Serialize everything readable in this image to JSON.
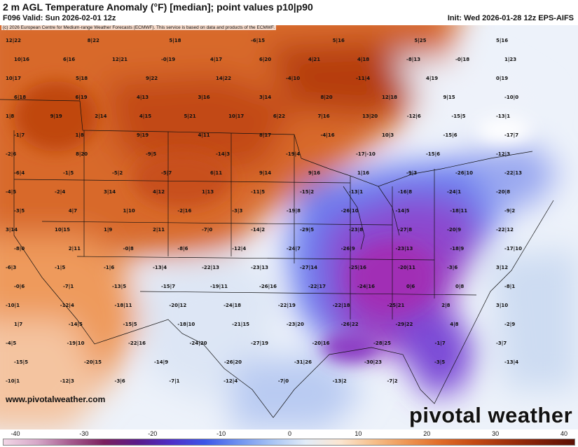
{
  "header": {
    "title": "2 m AGL Temperature Anomaly (°F) [median]; point values p10|p90",
    "valid": "F096 Valid: Sun 2026-02-01 12z",
    "init": "Init: Wed 2026-01-28 12z EPS-AIFS",
    "copyright": "(c) 2026 European Centre for Medium-range Weather Forecasts (ECMWF). This service is based on data and products of the ECMWF."
  },
  "footer": {
    "site": "www.pivotalweather.com",
    "brand": "pivotal weather"
  },
  "scale": {
    "ticks": [
      "-40",
      "-30",
      "-20",
      "-10",
      "0",
      "10",
      "20",
      "30",
      "40"
    ],
    "colors": [
      "#f2d6e6",
      "#d6a8c8",
      "#a55a8e",
      "#7a1f5e",
      "#5a1a8a",
      "#4e2fc8",
      "#3b56e8",
      "#6f92f0",
      "#a8c4f4",
      "#e2ecf8",
      "#fbe6d2",
      "#f6c08c",
      "#ee9654",
      "#e06c28",
      "#c44a14",
      "#a0320c",
      "#7e1e08",
      "#5c1004"
    ]
  },
  "map": {
    "point_values": [
      "12|22",
      "8|22",
      "5|18",
      "-6|15",
      "5|16",
      "5|25",
      "5|16",
      "10|16",
      "6|16",
      "12|21",
      "-0|19",
      "4|17",
      "6|20",
      "4|21",
      "4|18",
      "-8|13",
      "-0|18",
      "1|23",
      "10|17",
      "5|18",
      "9|22",
      "14|22",
      "-4|10",
      "-11|4",
      "4|19",
      "0|19",
      "6|18",
      "6|19",
      "4|13",
      "3|16",
      "3|14",
      "8|20",
      "12|18",
      "9|15",
      "-10|0",
      "1|8",
      "9|19",
      "2|14",
      "4|15",
      "5|21",
      "10|17",
      "6|22",
      "7|16",
      "13|20",
      "-12|6",
      "-15|5",
      "-13|1",
      "-1|7",
      "1|8",
      "9|19",
      "4|11",
      "8|17",
      "-4|16",
      "10|3",
      "-15|6",
      "-17|7",
      "-2|6",
      "8|20",
      "-9|5",
      "-14|3",
      "-19|4",
      "-17|-10",
      "-15|6",
      "-12|3",
      "-6|4",
      "-1|5",
      "-5|2",
      "-5|7",
      "6|11",
      "9|14",
      "9|16",
      "1|16",
      "-9|3",
      "-26|10",
      "-22|13",
      "-4|5",
      "-2|4",
      "3|14",
      "4|12",
      "1|13",
      "-11|5",
      "-15|2",
      "-13|1",
      "-16|8",
      "-24|1",
      "-20|8",
      "-3|5",
      "4|7",
      "1|10",
      "-2|16",
      "-3|3",
      "-19|8",
      "-26|10",
      "-14|5",
      "-18|11",
      "-9|2",
      "3|14",
      "10|15",
      "1|9",
      "2|11",
      "-7|0",
      "-14|2",
      "-29|5",
      "-23|8",
      "-27|8",
      "-20|9",
      "-22|12",
      "-8|0",
      "2|11",
      "-0|8",
      "-8|6",
      "-12|4",
      "-24|7",
      "-26|9",
      "-23|13",
      "-18|9",
      "-17|10",
      "-6|3",
      "-1|5",
      "-1|6",
      "-13|4",
      "-22|13",
      "-23|13",
      "-27|14",
      "-25|16",
      "-20|11",
      "-3|6",
      "3|12",
      "-0|6",
      "-7|1",
      "-13|5",
      "-15|7",
      "-19|11",
      "-26|16",
      "-22|17",
      "-24|16",
      "0|6",
      "0|8",
      "-8|1",
      "-10|1",
      "-12|4",
      "-18|11",
      "-20|12",
      "-24|18",
      "-22|19",
      "-22|18",
      "-25|21",
      "2|8",
      "3|10",
      "1|7",
      "-14|5",
      "-15|5",
      "-18|10",
      "-21|15",
      "-23|20",
      "-26|22",
      "-29|22",
      "4|8",
      "-2|9",
      "-4|5",
      "-19|10",
      "-22|16",
      "-24|20",
      "-27|19",
      "-20|16",
      "-28|25",
      "-1|7",
      "-3|7",
      "-15|5",
      "-20|15",
      "-14|9",
      "-26|20",
      "-31|26",
      "-30|23",
      "-3|5",
      "-13|4",
      "-10|1",
      "-12|3",
      "-3|6",
      "-7|1",
      "-12|4",
      "-7|0",
      "-13|2",
      "-7|2"
    ]
  }
}
